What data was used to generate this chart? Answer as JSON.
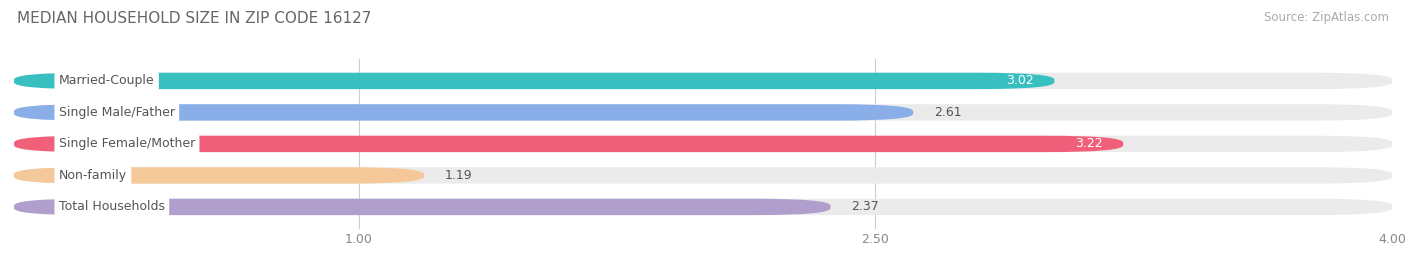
{
  "title": "MEDIAN HOUSEHOLD SIZE IN ZIP CODE 16127",
  "source": "Source: ZipAtlas.com",
  "categories": [
    "Married-Couple",
    "Single Male/Father",
    "Single Female/Mother",
    "Non-family",
    "Total Households"
  ],
  "values": [
    3.02,
    2.61,
    3.22,
    1.19,
    2.37
  ],
  "bar_colors": [
    "#38bfbf",
    "#8aaee8",
    "#f0607a",
    "#f5c89a",
    "#b09fcc"
  ],
  "xlim_max": 4.0,
  "xlim_data_max": 4.0,
  "xticks": [
    1.0,
    2.5,
    4.0
  ],
  "bar_height": 0.52,
  "background_color": "#ffffff",
  "bar_bg_color": "#ebebeb",
  "value_fontsize": 9,
  "label_fontsize": 9,
  "title_fontsize": 11,
  "source_fontsize": 8.5,
  "title_color": "#666666",
  "source_color": "#aaaaaa",
  "tick_color": "#888888",
  "label_text_color": "#555555"
}
